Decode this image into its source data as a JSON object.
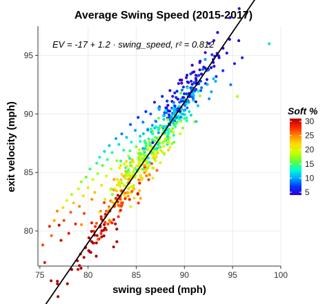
{
  "chart_data": {
    "type": "scatter",
    "title": "Average Swing Speed (2015-2017)",
    "xlabel": "swing speed (mph)",
    "ylabel": "exit velocity (mph)",
    "xlim": [
      74.8,
      100
    ],
    "ylim": [
      77,
      97.5
    ],
    "xticks": [
      75,
      80,
      85,
      90,
      95,
      100
    ],
    "yticks": [
      80,
      85,
      90,
      95
    ],
    "grid": true,
    "annotation": "EV = -17 + 1.2 · swing_speed,  r² = 0.812",
    "fit_line": {
      "intercept": -17,
      "slope": 1.2,
      "x_range": [
        75.5,
        98.8
      ],
      "color": "#000000",
      "style": "solid"
    },
    "legend": {
      "title": "Soft %",
      "position": "right",
      "min": 4,
      "max": 31,
      "ticks": [
        5,
        10,
        15,
        20,
        25,
        30
      ],
      "colorscale": [
        "#3300cc",
        "#0033ff",
        "#00aaff",
        "#00ffcc",
        "#66ff33",
        "#ccff00",
        "#ffdd00",
        "#ff8800",
        "#ff2200",
        "#b30000"
      ]
    },
    "points_summary": {
      "count": 650,
      "x_range": [
        75.3,
        98.8
      ],
      "y_range": [
        77.3,
        96.0
      ],
      "trend": "positive linear, color shifts from red/orange (high Soft %) at low speeds to blue (low Soft %) at high speeds"
    },
    "points": [
      [
        75.3,
        78.8,
        27
      ],
      [
        75.5,
        77.3,
        29
      ],
      [
        76.0,
        80.4,
        28
      ],
      [
        76.2,
        79.6,
        26
      ],
      [
        76.5,
        80.9,
        24
      ],
      [
        76.8,
        81.7,
        25
      ],
      [
        77.0,
        80.5,
        30
      ],
      [
        77.2,
        79.2,
        30
      ],
      [
        77.4,
        82.0,
        22
      ],
      [
        77.5,
        80.9,
        27
      ],
      [
        77.8,
        82.6,
        20
      ],
      [
        78.0,
        79.8,
        29
      ],
      [
        78.2,
        81.6,
        26
      ],
      [
        78.3,
        83.1,
        18
      ],
      [
        78.5,
        82.4,
        23
      ],
      [
        78.7,
        80.6,
        28
      ],
      [
        79.0,
        83.6,
        19
      ],
      [
        79.1,
        82.1,
        25
      ],
      [
        79.3,
        84.2,
        17
      ],
      [
        79.5,
        83.0,
        22
      ],
      [
        79.6,
        81.5,
        27
      ],
      [
        79.8,
        84.6,
        16
      ],
      [
        80.0,
        83.7,
        21
      ],
      [
        80.2,
        85.3,
        15
      ],
      [
        80.4,
        82.7,
        25
      ],
      [
        80.5,
        84.4,
        19
      ],
      [
        80.7,
        83.3,
        23
      ],
      [
        80.9,
        85.8,
        14
      ],
      [
        81.0,
        84.9,
        18
      ],
      [
        81.2,
        86.3,
        13
      ],
      [
        81.4,
        83.9,
        22
      ],
      [
        81.5,
        85.6,
        16
      ],
      [
        81.7,
        86.8,
        12
      ],
      [
        81.9,
        84.7,
        20
      ],
      [
        82.0,
        86.1,
        15
      ],
      [
        82.2,
        87.3,
        11
      ],
      [
        82.4,
        85.3,
        19
      ],
      [
        82.5,
        86.7,
        14
      ],
      [
        82.7,
        84.4,
        24
      ],
      [
        82.9,
        87.9,
        10
      ],
      [
        83.0,
        86.0,
        17
      ],
      [
        83.2,
        87.4,
        12
      ],
      [
        83.4,
        85.6,
        20
      ],
      [
        83.5,
        88.3,
        9
      ],
      [
        83.7,
        86.9,
        14
      ],
      [
        83.9,
        85.1,
        23
      ],
      [
        84.0,
        88.0,
        11
      ],
      [
        84.2,
        86.4,
        18
      ],
      [
        84.4,
        89.1,
        8
      ],
      [
        84.5,
        87.6,
        13
      ],
      [
        84.7,
        85.9,
        21
      ],
      [
        84.9,
        88.6,
        10
      ],
      [
        85.0,
        87.2,
        16
      ],
      [
        85.2,
        89.7,
        7
      ],
      [
        85.4,
        88.1,
        12
      ],
      [
        85.5,
        86.6,
        19
      ],
      [
        85.7,
        89.3,
        9
      ],
      [
        85.9,
        87.7,
        14
      ],
      [
        86.0,
        90.2,
        7
      ],
      [
        86.2,
        88.7,
        11
      ],
      [
        86.4,
        87.3,
        17
      ],
      [
        86.5,
        90.0,
        8
      ],
      [
        86.7,
        88.3,
        13
      ],
      [
        86.9,
        91.0,
        6
      ],
      [
        87.0,
        89.4,
        10
      ],
      [
        87.2,
        87.9,
        16
      ],
      [
        87.4,
        90.6,
        7
      ],
      [
        87.5,
        89.0,
        12
      ],
      [
        87.7,
        91.5,
        6
      ],
      [
        87.9,
        89.9,
        9
      ],
      [
        88.0,
        88.5,
        15
      ],
      [
        88.2,
        91.1,
        7
      ],
      [
        88.4,
        89.6,
        11
      ],
      [
        88.5,
        92.0,
        5
      ],
      [
        88.7,
        90.5,
        8
      ],
      [
        88.9,
        89.1,
        14
      ],
      [
        89.0,
        91.8,
        6
      ],
      [
        89.2,
        90.3,
        10
      ],
      [
        89.4,
        92.6,
        5
      ],
      [
        89.5,
        91.0,
        8
      ],
      [
        89.7,
        89.7,
        13
      ],
      [
        89.9,
        92.3,
        6
      ],
      [
        90.0,
        90.9,
        9
      ],
      [
        90.2,
        93.1,
        5
      ],
      [
        90.4,
        91.5,
        7
      ],
      [
        90.5,
        90.2,
        12
      ],
      [
        90.7,
        92.8,
        6
      ],
      [
        90.9,
        91.4,
        9
      ],
      [
        91.0,
        93.6,
        5
      ],
      [
        91.2,
        92.1,
        7
      ],
      [
        91.4,
        90.7,
        11
      ],
      [
        91.5,
        93.3,
        6
      ],
      [
        91.7,
        92.0,
        8
      ],
      [
        92.0,
        94.0,
        5
      ],
      [
        92.2,
        92.6,
        7
      ],
      [
        92.5,
        93.8,
        6
      ],
      [
        92.8,
        91.9,
        10
      ],
      [
        93.0,
        94.4,
        5
      ],
      [
        93.3,
        93.2,
        7
      ],
      [
        93.6,
        94.8,
        5
      ],
      [
        94.0,
        93.7,
        7
      ],
      [
        94.4,
        95.2,
        5
      ],
      [
        94.8,
        92.5,
        9
      ],
      [
        95.2,
        94.3,
        6
      ],
      [
        95.5,
        91.5,
        18
      ],
      [
        96.0,
        94.8,
        6
      ],
      [
        98.8,
        96.0,
        12
      ]
    ]
  }
}
